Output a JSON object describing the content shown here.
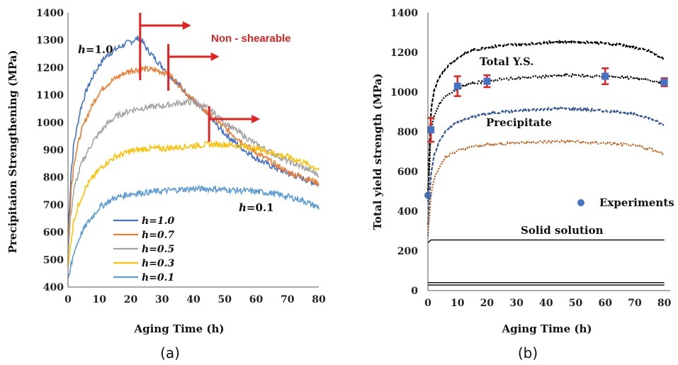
{
  "chart_data": [
    {
      "id": "a",
      "type": "line",
      "caption": "(a)",
      "xlabel": "Aging Time (h)",
      "ylabel": "Precipitaion Strengthening (MPa)",
      "xlim": [
        0,
        80
      ],
      "ylim": [
        400,
        1400
      ],
      "xticks": [
        0,
        10,
        20,
        30,
        40,
        50,
        60,
        70,
        80
      ],
      "yticks": [
        400,
        500,
        600,
        700,
        800,
        900,
        1000,
        1100,
        1200,
        1300,
        1400
      ],
      "grid": false,
      "legend_position": "bottom-center",
      "series": [
        {
          "name": "h=1.0",
          "color": "#4472c4",
          "x": [
            0,
            1,
            2,
            4,
            6,
            8,
            10,
            12,
            15,
            18,
            20,
            22,
            23,
            25,
            28,
            32,
            36,
            40,
            45,
            50,
            55,
            60,
            65,
            70,
            75,
            80
          ],
          "y": [
            600,
            820,
            930,
            1050,
            1120,
            1170,
            1210,
            1240,
            1265,
            1285,
            1295,
            1305,
            1310,
            1270,
            1230,
            1180,
            1130,
            1080,
            1020,
            960,
            910,
            870,
            840,
            815,
            795,
            775
          ]
        },
        {
          "name": "h=0.7",
          "color": "#ed7d31",
          "x": [
            0,
            1,
            2,
            4,
            6,
            8,
            10,
            12,
            15,
            18,
            20,
            24,
            28,
            32,
            36,
            40,
            45,
            50,
            55,
            60,
            65,
            70,
            75,
            80
          ],
          "y": [
            560,
            760,
            860,
            960,
            1020,
            1070,
            1110,
            1135,
            1160,
            1180,
            1190,
            1195,
            1190,
            1180,
            1130,
            1080,
            1030,
            980,
            935,
            890,
            855,
            820,
            800,
            780
          ]
        },
        {
          "name": "h=0.5",
          "color": "#a5a5a5",
          "x": [
            0,
            1,
            2,
            4,
            6,
            8,
            10,
            12,
            15,
            20,
            25,
            30,
            35,
            40,
            45,
            50,
            55,
            60,
            65,
            70,
            75,
            80
          ],
          "y": [
            520,
            680,
            760,
            840,
            890,
            930,
            960,
            990,
            1020,
            1045,
            1055,
            1060,
            1070,
            1075,
            1050,
            1000,
            960,
            920,
            890,
            860,
            835,
            810
          ]
        },
        {
          "name": "h=0.3",
          "color": "#ffc000",
          "x": [
            0,
            1,
            2,
            4,
            6,
            8,
            10,
            12,
            15,
            20,
            25,
            30,
            35,
            40,
            45,
            50,
            55,
            60,
            65,
            70,
            75,
            80
          ],
          "y": [
            460,
            580,
            650,
            720,
            770,
            800,
            830,
            850,
            875,
            895,
            905,
            905,
            910,
            915,
            920,
            920,
            915,
            905,
            890,
            875,
            855,
            830
          ]
        },
        {
          "name": "h=0.1",
          "color": "#5b9bd5",
          "x": [
            0,
            1,
            2,
            4,
            6,
            8,
            10,
            12,
            15,
            20,
            25,
            30,
            35,
            40,
            45,
            50,
            55,
            60,
            65,
            70,
            75,
            80
          ],
          "y": [
            410,
            480,
            530,
            590,
            630,
            660,
            690,
            705,
            725,
            740,
            745,
            750,
            755,
            758,
            758,
            755,
            752,
            748,
            742,
            730,
            715,
            690
          ]
        }
      ],
      "annotations": {
        "label_h10": "h=1.0",
        "label_h01": "h=0.1",
        "non_shearable": "Non - shearable",
        "markers_x": [
          23,
          32,
          45
        ]
      }
    },
    {
      "id": "b",
      "type": "line",
      "caption": "(b)",
      "xlabel": "Aging Time (h)",
      "ylabel": "Total yield strength (MPa)",
      "xlim": [
        0,
        82
      ],
      "ylim": [
        0,
        1400
      ],
      "xticks": [
        0,
        10,
        20,
        30,
        40,
        50,
        60,
        70,
        80
      ],
      "yticks": [
        0,
        200,
        400,
        600,
        800,
        1000,
        1200,
        1400
      ],
      "grid": false,
      "series": [
        {
          "name": "Total Y.S.",
          "color": "#000000",
          "style": "dashed",
          "x": [
            0,
            1,
            2,
            4,
            6,
            8,
            10,
            12,
            15,
            20,
            25,
            30,
            35,
            40,
            45,
            50,
            55,
            60,
            65,
            70,
            75,
            80
          ],
          "y": [
            500,
            900,
            1000,
            1080,
            1120,
            1150,
            1170,
            1190,
            1210,
            1225,
            1235,
            1240,
            1245,
            1250,
            1255,
            1255,
            1250,
            1245,
            1240,
            1225,
            1205,
            1165
          ]
        },
        {
          "name": "",
          "color": "#000000",
          "style": "dotted",
          "x": [
            0,
            1,
            2,
            4,
            6,
            8,
            10,
            12,
            15,
            20,
            25,
            30,
            35,
            40,
            45,
            50,
            55,
            60,
            65,
            70,
            75,
            80
          ],
          "y": [
            450,
            800,
            880,
            940,
            980,
            1000,
            1020,
            1030,
            1045,
            1055,
            1065,
            1070,
            1075,
            1080,
            1085,
            1085,
            1080,
            1080,
            1075,
            1070,
            1060,
            1040
          ]
        },
        {
          "name": "Precipitate",
          "color": "#2f5597",
          "style": "dashed",
          "x": [
            0,
            1,
            2,
            4,
            6,
            8,
            10,
            12,
            15,
            20,
            25,
            30,
            35,
            40,
            45,
            50,
            55,
            60,
            65,
            70,
            75,
            80
          ],
          "y": [
            330,
            580,
            680,
            760,
            800,
            830,
            850,
            860,
            875,
            890,
            900,
            905,
            910,
            915,
            918,
            915,
            910,
            905,
            900,
            890,
            870,
            830
          ]
        },
        {
          "name": "",
          "color": "#c55a11",
          "style": "dotted",
          "x": [
            0,
            1,
            2,
            4,
            6,
            8,
            10,
            12,
            15,
            20,
            25,
            30,
            35,
            40,
            45,
            50,
            55,
            60,
            65,
            70,
            75,
            80
          ],
          "y": [
            280,
            480,
            560,
            630,
            670,
            690,
            705,
            715,
            725,
            735,
            740,
            745,
            748,
            750,
            752,
            750,
            745,
            742,
            738,
            730,
            715,
            690
          ]
        },
        {
          "name": "Solid solution",
          "color": "#000000",
          "style": "solid",
          "x": [
            0,
            1,
            80
          ],
          "y": [
            240,
            255,
            255
          ]
        },
        {
          "name": "",
          "color": "#000000",
          "style": "solid",
          "x": [
            0,
            80
          ],
          "y": [
            40,
            40
          ]
        },
        {
          "name": "",
          "color": "#000000",
          "style": "solid",
          "x": [
            0,
            80
          ],
          "y": [
            28,
            28
          ]
        }
      ],
      "experiments": {
        "name": "Experiments",
        "color": "#4472c4",
        "error_color": "#e52222",
        "x": [
          0,
          1,
          10,
          20,
          60,
          80
        ],
        "y": [
          480,
          810,
          1030,
          1055,
          1080,
          1050
        ],
        "err": [
          0,
          60,
          50,
          30,
          40,
          20
        ]
      },
      "annotations": {
        "total_ys": "Total Y.S.",
        "precipitate": "Precipitate",
        "solid_solution": "Solid solution",
        "experiments_legend": "Experiments"
      }
    }
  ]
}
